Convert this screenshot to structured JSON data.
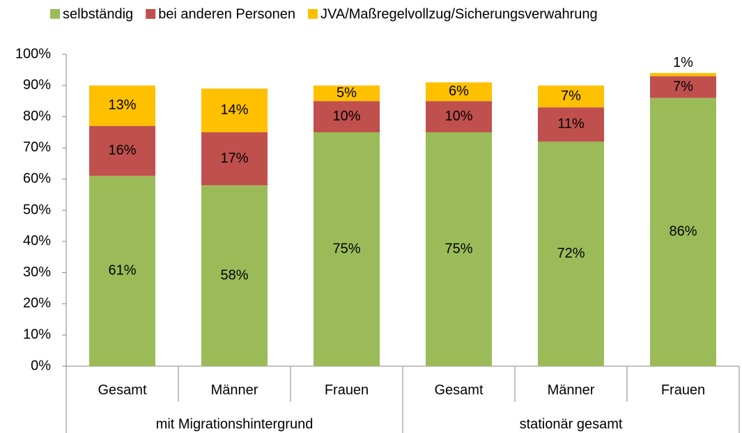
{
  "chart_data": {
    "type": "stacked_bar",
    "category_groups": [
      {
        "name": "mit Migrationshintergrund",
        "categories": [
          "Gesamt",
          "Männer",
          "Frauen"
        ]
      },
      {
        "name": "stationär gesamt",
        "categories": [
          "Gesamt",
          "Männer",
          "Frauen"
        ]
      }
    ],
    "series": [
      {
        "name": "selbständig",
        "color": "#9bbb59",
        "values": [
          61,
          58,
          75,
          75,
          72,
          86
        ],
        "value_labels": [
          "61%",
          "58%",
          "75%",
          "75%",
          "72%",
          "86%"
        ]
      },
      {
        "name": "bei anderen Personen",
        "color": "#c0504d",
        "values": [
          16,
          17,
          10,
          10,
          11,
          7
        ],
        "value_labels": [
          "16%",
          "17%",
          "10%",
          "10%",
          "11%",
          "7%"
        ]
      },
      {
        "name": "JVA/Maßregelvollzug/Sicherungsverwahrung",
        "color": "#ffc000",
        "values": [
          13,
          14,
          5,
          6,
          7,
          1
        ],
        "value_labels": [
          "13%",
          "14%",
          "5%",
          "6%",
          "7%",
          "1%"
        ]
      }
    ],
    "ylim": [
      0,
      100
    ],
    "yticks": [
      {
        "value": 0,
        "label": "0%"
      },
      {
        "value": 10,
        "label": "10%"
      },
      {
        "value": 20,
        "label": "20%"
      },
      {
        "value": 30,
        "label": "30%"
      },
      {
        "value": 40,
        "label": "40%"
      },
      {
        "value": 50,
        "label": "50%"
      },
      {
        "value": 60,
        "label": "60%"
      },
      {
        "value": 70,
        "label": "70%"
      },
      {
        "value": 80,
        "label": "80%"
      },
      {
        "value": 90,
        "label": "90%"
      },
      {
        "value": 100,
        "label": "100%"
      }
    ],
    "legend": "top"
  }
}
